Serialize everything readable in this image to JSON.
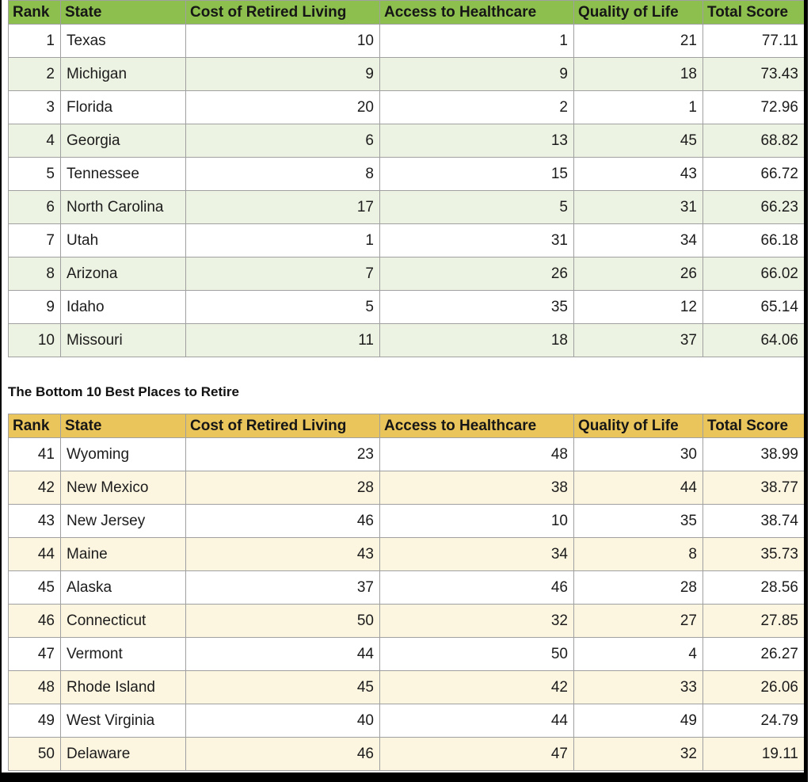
{
  "columns": [
    "Rank",
    "State",
    "Cost of Retired Living",
    "Access to Healthcare",
    "Quality of Life",
    "Total Score"
  ],
  "headings": {
    "bottom_table_title": "The Bottom 10 Best Places to Retire"
  },
  "tables": {
    "top": {
      "rows": [
        [
          "1",
          "Texas",
          "10",
          "1",
          "21",
          "77.11"
        ],
        [
          "2",
          "Michigan",
          "9",
          "9",
          "18",
          "73.43"
        ],
        [
          "3",
          "Florida",
          "20",
          "2",
          "1",
          "72.96"
        ],
        [
          "4",
          "Georgia",
          "6",
          "13",
          "45",
          "68.82"
        ],
        [
          "5",
          "Tennessee",
          "8",
          "15",
          "43",
          "66.72"
        ],
        [
          "6",
          "North Carolina",
          "17",
          "5",
          "31",
          "66.23"
        ],
        [
          "7",
          "Utah",
          "1",
          "31",
          "34",
          "66.18"
        ],
        [
          "8",
          "Arizona",
          "7",
          "26",
          "26",
          "66.02"
        ],
        [
          "9",
          "Idaho",
          "5",
          "35",
          "12",
          "65.14"
        ],
        [
          "10",
          "Missouri",
          "11",
          "18",
          "37",
          "64.06"
        ]
      ]
    },
    "bottom": {
      "rows": [
        [
          "41",
          "Wyoming",
          "23",
          "48",
          "30",
          "38.99"
        ],
        [
          "42",
          "New Mexico",
          "28",
          "38",
          "44",
          "38.77"
        ],
        [
          "43",
          "New Jersey",
          "46",
          "10",
          "35",
          "38.74"
        ],
        [
          "44",
          "Maine",
          "43",
          "34",
          "8",
          "35.73"
        ],
        [
          "45",
          "Alaska",
          "37",
          "46",
          "28",
          "28.56"
        ],
        [
          "46",
          "Connecticut",
          "50",
          "32",
          "27",
          "27.85"
        ],
        [
          "47",
          "Vermont",
          "44",
          "50",
          "4",
          "26.27"
        ],
        [
          "48",
          "Rhode Island",
          "45",
          "42",
          "33",
          "26.06"
        ],
        [
          "49",
          "West Virginia",
          "40",
          "44",
          "49",
          "24.79"
        ],
        [
          "50",
          "Delaware",
          "46",
          "47",
          "32",
          "19.11"
        ]
      ]
    }
  },
  "colors": {
    "top_header_bg": "#8cbf4d",
    "top_row_alt_bg": "#edf3e3",
    "bottom_header_bg": "#eac55c",
    "bottom_row_alt_bg": "#fcf5e0",
    "grid_border": "#a0a0a0",
    "frame": "#000000"
  }
}
